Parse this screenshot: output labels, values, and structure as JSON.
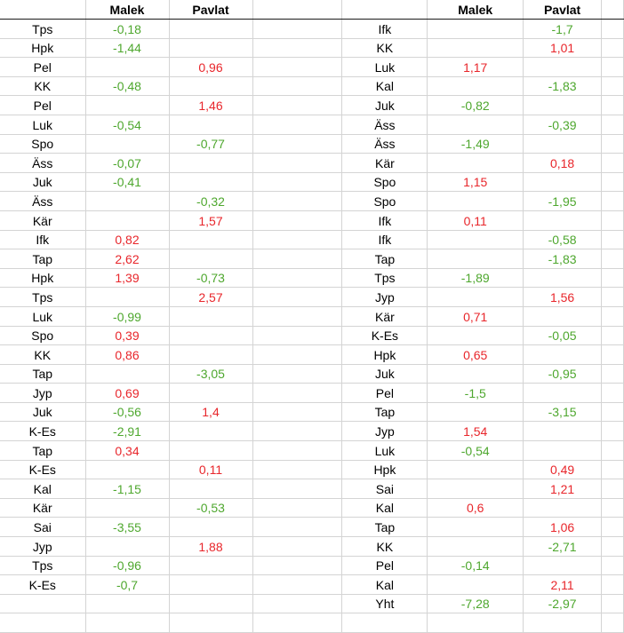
{
  "headers": {
    "col1": "Malek",
    "col2": "Pavlat"
  },
  "colors": {
    "negative": "#4ea72e",
    "positive": "#e8262b",
    "grid": "#d4d4d4"
  },
  "left_rows": [
    {
      "team": "Tps",
      "malek": "-0,18",
      "pavlat": ""
    },
    {
      "team": "Hpk",
      "malek": "-1,44",
      "pavlat": ""
    },
    {
      "team": "Pel",
      "malek": "",
      "pavlat": "0,96"
    },
    {
      "team": "KK",
      "malek": "-0,48",
      "pavlat": ""
    },
    {
      "team": "Pel",
      "malek": "",
      "pavlat": "1,46"
    },
    {
      "team": "Luk",
      "malek": "-0,54",
      "pavlat": ""
    },
    {
      "team": "Spo",
      "malek": "",
      "pavlat": "-0,77"
    },
    {
      "team": "Äss",
      "malek": "-0,07",
      "pavlat": ""
    },
    {
      "team": "Juk",
      "malek": "-0,41",
      "pavlat": ""
    },
    {
      "team": "Äss",
      "malek": "",
      "pavlat": "-0,32"
    },
    {
      "team": "Kär",
      "malek": "",
      "pavlat": "1,57"
    },
    {
      "team": "Ifk",
      "malek": "0,82",
      "pavlat": ""
    },
    {
      "team": "Tap",
      "malek": "2,62",
      "pavlat": ""
    },
    {
      "team": "Hpk",
      "malek": "1,39",
      "pavlat": "-0,73"
    },
    {
      "team": "Tps",
      "malek": "",
      "pavlat": "2,57"
    },
    {
      "team": "Luk",
      "malek": "-0,99",
      "pavlat": ""
    },
    {
      "team": "Spo",
      "malek": "0,39",
      "pavlat": ""
    },
    {
      "team": "KK",
      "malek": "0,86",
      "pavlat": ""
    },
    {
      "team": "Tap",
      "malek": "",
      "pavlat": "-3,05"
    },
    {
      "team": "Jyp",
      "malek": "0,69",
      "pavlat": ""
    },
    {
      "team": "Juk",
      "malek": "-0,56",
      "pavlat": "1,4"
    },
    {
      "team": "K-Es",
      "malek": "-2,91",
      "pavlat": ""
    },
    {
      "team": "Tap",
      "malek": "0,34",
      "pavlat": ""
    },
    {
      "team": "K-Es",
      "malek": "",
      "pavlat": "0,11"
    },
    {
      "team": "Kal",
      "malek": "-1,15",
      "pavlat": ""
    },
    {
      "team": "Kär",
      "malek": "",
      "pavlat": "-0,53"
    },
    {
      "team": "Sai",
      "malek": "-3,55",
      "pavlat": ""
    },
    {
      "team": "Jyp",
      "malek": "",
      "pavlat": "1,88"
    },
    {
      "team": "Tps",
      "malek": "-0,96",
      "pavlat": ""
    },
    {
      "team": "K-Es",
      "malek": "-0,7",
      "pavlat": ""
    },
    {
      "team": "",
      "malek": "",
      "pavlat": ""
    },
    {
      "team": "",
      "malek": "",
      "pavlat": ""
    }
  ],
  "right_rows": [
    {
      "team": "Ifk",
      "malek": "",
      "pavlat": "-1,7"
    },
    {
      "team": "KK",
      "malek": "",
      "pavlat": "1,01"
    },
    {
      "team": "Luk",
      "malek": "1,17",
      "pavlat": ""
    },
    {
      "team": "Kal",
      "malek": "",
      "pavlat": "-1,83"
    },
    {
      "team": "Juk",
      "malek": "-0,82",
      "pavlat": ""
    },
    {
      "team": "Äss",
      "malek": "",
      "pavlat": "-0,39"
    },
    {
      "team": "Äss",
      "malek": "-1,49",
      "pavlat": ""
    },
    {
      "team": "Kär",
      "malek": "",
      "pavlat": "0,18"
    },
    {
      "team": "Spo",
      "malek": "1,15",
      "pavlat": ""
    },
    {
      "team": "Spo",
      "malek": "",
      "pavlat": "-1,95"
    },
    {
      "team": "Ifk",
      "malek": "0,11",
      "pavlat": ""
    },
    {
      "team": "Ifk",
      "malek": "",
      "pavlat": "-0,58"
    },
    {
      "team": "Tap",
      "malek": "",
      "pavlat": "-1,83"
    },
    {
      "team": "Tps",
      "malek": "-1,89",
      "pavlat": ""
    },
    {
      "team": "Jyp",
      "malek": "",
      "pavlat": "1,56"
    },
    {
      "team": "Kär",
      "malek": "0,71",
      "pavlat": ""
    },
    {
      "team": "K-Es",
      "malek": "",
      "pavlat": "-0,05"
    },
    {
      "team": "Hpk",
      "malek": "0,65",
      "pavlat": ""
    },
    {
      "team": "Juk",
      "malek": "",
      "pavlat": "-0,95"
    },
    {
      "team": "Pel",
      "malek": "-1,5",
      "pavlat": ""
    },
    {
      "team": "Tap",
      "malek": "",
      "pavlat": "-3,15"
    },
    {
      "team": "Jyp",
      "malek": "1,54",
      "pavlat": ""
    },
    {
      "team": "Luk",
      "malek": "-0,54",
      "pavlat": ""
    },
    {
      "team": "Hpk",
      "malek": "",
      "pavlat": "0,49"
    },
    {
      "team": "Sai",
      "malek": "",
      "pavlat": "1,21"
    },
    {
      "team": "Kal",
      "malek": "0,6",
      "pavlat": ""
    },
    {
      "team": "Tap",
      "malek": "",
      "pavlat": "1,06"
    },
    {
      "team": "KK",
      "malek": "",
      "pavlat": "-2,71"
    },
    {
      "team": "Pel",
      "malek": "-0,14",
      "pavlat": ""
    },
    {
      "team": "Kal",
      "malek": "",
      "pavlat": "2,11"
    },
    {
      "team": "Yht",
      "malek": "-7,28",
      "pavlat": "-2,97"
    },
    {
      "team": "",
      "malek": "",
      "pavlat": ""
    }
  ]
}
